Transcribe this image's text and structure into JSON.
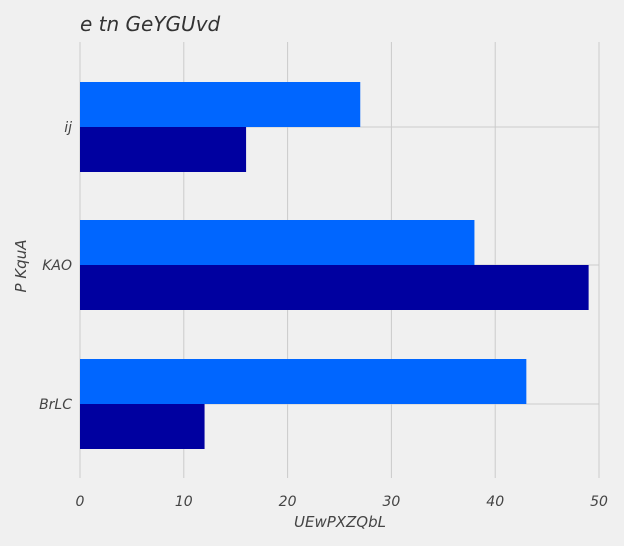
{
  "chart_data": {
    "type": "bar",
    "orientation": "horizontal",
    "title": "e tn GeYGUvd",
    "xlabel": "UEwPXZQbL",
    "ylabel": "P KquA",
    "categories": [
      "ij",
      "KAO",
      "BrLC"
    ],
    "series": [
      {
        "color": "#0066ff",
        "values": [
          27,
          38,
          43
        ]
      },
      {
        "color": "#0000a0",
        "values": [
          16,
          49,
          12
        ]
      }
    ],
    "xlim": [
      0,
      50
    ],
    "xticks": [
      0,
      10,
      20,
      30,
      40,
      50
    ],
    "grid": true
  }
}
